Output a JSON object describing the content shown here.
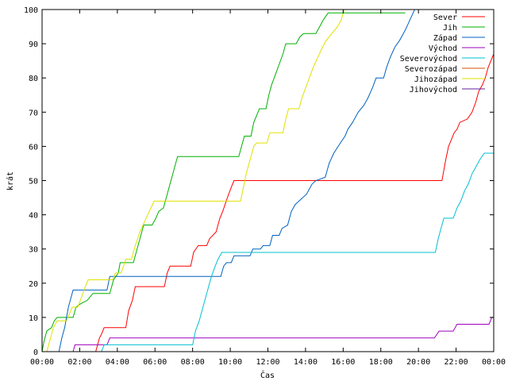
{
  "chart_data": {
    "type": "line",
    "title": "",
    "xlabel": "Čas",
    "ylabel": "krát",
    "xlim": [
      0,
      24
    ],
    "ylim": [
      0,
      100
    ],
    "x_ticks": [
      0,
      2,
      4,
      6,
      8,
      10,
      12,
      14,
      16,
      18,
      20,
      22,
      24
    ],
    "x_tick_labels": [
      "00:00",
      "02:00",
      "04:00",
      "06:00",
      "08:00",
      "10:00",
      "12:00",
      "14:00",
      "16:00",
      "18:00",
      "20:00",
      "22:00",
      "00:00"
    ],
    "y_ticks": [
      0,
      10,
      20,
      30,
      40,
      50,
      60,
      70,
      80,
      90,
      100
    ],
    "y_tick_labels": [
      "0",
      "10",
      "20",
      "30",
      "40",
      "50",
      "60",
      "70",
      "80",
      "90",
      "100"
    ],
    "grid": false,
    "legend_position": "top-right",
    "series": [
      {
        "name": "Sever",
        "color": "#ff0000",
        "points": [
          [
            0,
            0
          ],
          [
            2.85,
            0
          ],
          [
            3.05,
            4
          ],
          [
            3.15,
            5
          ],
          [
            3.3,
            7
          ],
          [
            4.45,
            7
          ],
          [
            4.6,
            12
          ],
          [
            4.8,
            15
          ],
          [
            4.95,
            19
          ],
          [
            6.5,
            19
          ],
          [
            6.65,
            23
          ],
          [
            6.8,
            25
          ],
          [
            7.9,
            25
          ],
          [
            8.05,
            29
          ],
          [
            8.3,
            31
          ],
          [
            8.75,
            31
          ],
          [
            8.9,
            33
          ],
          [
            9.25,
            35
          ],
          [
            9.45,
            39
          ],
          [
            9.6,
            41
          ],
          [
            9.85,
            45
          ],
          [
            10.05,
            48
          ],
          [
            10.2,
            50
          ],
          [
            21.25,
            50
          ],
          [
            21.45,
            56
          ],
          [
            21.6,
            60
          ],
          [
            21.75,
            62
          ],
          [
            21.9,
            64
          ],
          [
            22.05,
            65
          ],
          [
            22.2,
            67
          ],
          [
            22.6,
            68
          ],
          [
            22.85,
            70
          ],
          [
            23.05,
            73
          ],
          [
            23.2,
            76
          ],
          [
            23.4,
            78
          ],
          [
            23.55,
            80
          ],
          [
            23.7,
            83
          ],
          [
            23.85,
            85
          ],
          [
            24,
            87
          ]
        ]
      },
      {
        "name": "Jih",
        "color": "#00b000",
        "points": [
          [
            0,
            0
          ],
          [
            0.1,
            3
          ],
          [
            0.25,
            6
          ],
          [
            0.5,
            7
          ],
          [
            0.65,
            9
          ],
          [
            0.8,
            10
          ],
          [
            1.65,
            10
          ],
          [
            1.8,
            13
          ],
          [
            2.05,
            14
          ],
          [
            2.4,
            15
          ],
          [
            2.7,
            17
          ],
          [
            3.6,
            17
          ],
          [
            3.8,
            21
          ],
          [
            4.05,
            23
          ],
          [
            4.15,
            26
          ],
          [
            4.85,
            26
          ],
          [
            5.05,
            30
          ],
          [
            5.2,
            33
          ],
          [
            5.4,
            37
          ],
          [
            5.85,
            37
          ],
          [
            6.05,
            39
          ],
          [
            6.2,
            41
          ],
          [
            6.45,
            42
          ],
          [
            6.6,
            45
          ],
          [
            6.75,
            48
          ],
          [
            6.9,
            51
          ],
          [
            7.05,
            54
          ],
          [
            7.2,
            57
          ],
          [
            10.45,
            57
          ],
          [
            10.6,
            60
          ],
          [
            10.75,
            63
          ],
          [
            11.1,
            63
          ],
          [
            11.25,
            67
          ],
          [
            11.4,
            69
          ],
          [
            11.55,
            71
          ],
          [
            11.9,
            71
          ],
          [
            12.05,
            75
          ],
          [
            12.2,
            78
          ],
          [
            12.4,
            81
          ],
          [
            12.6,
            84
          ],
          [
            12.8,
            87
          ],
          [
            12.95,
            90
          ],
          [
            13.5,
            90
          ],
          [
            13.7,
            92
          ],
          [
            13.9,
            93
          ],
          [
            14.55,
            93
          ],
          [
            14.75,
            95
          ],
          [
            14.95,
            97
          ],
          [
            15.2,
            99
          ],
          [
            19.3,
            99
          ]
        ]
      },
      {
        "name": "Západ",
        "color": "#0060c0",
        "points": [
          [
            0,
            0
          ],
          [
            0.9,
            0
          ],
          [
            1.05,
            4
          ],
          [
            1.2,
            7
          ],
          [
            1.3,
            10
          ],
          [
            1.4,
            13
          ],
          [
            1.55,
            16
          ],
          [
            1.65,
            18
          ],
          [
            3.45,
            18
          ],
          [
            3.6,
            22
          ],
          [
            9.5,
            22
          ],
          [
            9.65,
            25
          ],
          [
            9.8,
            26
          ],
          [
            10.05,
            26
          ],
          [
            10.2,
            28
          ],
          [
            11.05,
            28
          ],
          [
            11.2,
            30
          ],
          [
            11.6,
            30
          ],
          [
            11.75,
            31
          ],
          [
            12.1,
            31
          ],
          [
            12.25,
            34
          ],
          [
            12.6,
            34
          ],
          [
            12.75,
            36
          ],
          [
            13.05,
            37
          ],
          [
            13.25,
            41
          ],
          [
            13.45,
            43
          ],
          [
            13.65,
            44
          ],
          [
            14.05,
            46
          ],
          [
            14.35,
            49
          ],
          [
            14.55,
            50
          ],
          [
            15.05,
            51
          ],
          [
            15.25,
            55
          ],
          [
            15.5,
            58
          ],
          [
            15.85,
            61
          ],
          [
            16.1,
            63
          ],
          [
            16.25,
            65
          ],
          [
            16.5,
            67
          ],
          [
            16.8,
            70
          ],
          [
            17.1,
            72
          ],
          [
            17.3,
            74
          ],
          [
            17.55,
            77
          ],
          [
            17.75,
            80
          ],
          [
            18.15,
            80
          ],
          [
            18.3,
            83
          ],
          [
            18.5,
            86
          ],
          [
            18.75,
            89
          ],
          [
            19.0,
            91
          ],
          [
            19.3,
            94
          ],
          [
            19.55,
            97
          ],
          [
            19.8,
            100
          ]
        ]
      },
      {
        "name": "Východ",
        "color": "#a000c0",
        "points": [
          [
            0,
            0
          ],
          [
            1.65,
            0
          ],
          [
            1.75,
            2
          ],
          [
            3.45,
            2
          ],
          [
            3.6,
            4
          ],
          [
            20.85,
            4
          ],
          [
            21.1,
            6
          ],
          [
            21.85,
            6
          ],
          [
            22.05,
            8
          ],
          [
            23.75,
            8
          ],
          [
            23.9,
            10
          ],
          [
            24,
            10
          ]
        ]
      },
      {
        "name": "Severovýchod",
        "color": "#00c0d0",
        "points": [
          [
            0,
            0
          ],
          [
            3.15,
            0
          ],
          [
            3.3,
            2
          ],
          [
            8.0,
            2
          ],
          [
            8.15,
            6
          ],
          [
            8.35,
            9
          ],
          [
            8.55,
            13
          ],
          [
            8.7,
            16
          ],
          [
            8.85,
            19
          ],
          [
            9.0,
            22
          ],
          [
            9.2,
            25
          ],
          [
            9.35,
            27
          ],
          [
            9.55,
            29
          ],
          [
            20.9,
            29
          ],
          [
            21.05,
            33
          ],
          [
            21.2,
            36
          ],
          [
            21.35,
            39
          ],
          [
            21.85,
            39
          ],
          [
            22.05,
            42
          ],
          [
            22.25,
            44
          ],
          [
            22.45,
            47
          ],
          [
            22.65,
            49
          ],
          [
            22.85,
            52
          ],
          [
            23.05,
            54
          ],
          [
            23.25,
            56
          ],
          [
            23.5,
            58
          ],
          [
            24,
            58
          ]
        ]
      },
      {
        "name": "Severozápad",
        "color": "#d05000",
        "points": []
      },
      {
        "name": "Jihozápad",
        "color": "#e0e000",
        "points": [
          [
            0,
            0
          ],
          [
            0.25,
            0
          ],
          [
            0.45,
            4
          ],
          [
            0.6,
            7
          ],
          [
            0.8,
            9
          ],
          [
            1.3,
            9
          ],
          [
            1.45,
            11
          ],
          [
            1.6,
            13
          ],
          [
            1.9,
            13
          ],
          [
            2.1,
            16
          ],
          [
            2.3,
            19
          ],
          [
            2.45,
            21
          ],
          [
            3.75,
            21
          ],
          [
            3.9,
            23
          ],
          [
            4.2,
            23
          ],
          [
            4.45,
            27
          ],
          [
            4.75,
            27
          ],
          [
            4.95,
            31
          ],
          [
            5.2,
            35
          ],
          [
            5.45,
            38
          ],
          [
            5.7,
            41
          ],
          [
            5.95,
            44
          ],
          [
            10.55,
            44
          ],
          [
            10.7,
            48
          ],
          [
            10.85,
            52
          ],
          [
            11.05,
            56
          ],
          [
            11.25,
            60
          ],
          [
            11.4,
            61
          ],
          [
            11.95,
            61
          ],
          [
            12.1,
            64
          ],
          [
            12.8,
            64
          ],
          [
            12.95,
            68
          ],
          [
            13.1,
            71
          ],
          [
            13.65,
            71
          ],
          [
            13.8,
            74
          ],
          [
            14.0,
            77
          ],
          [
            14.2,
            80
          ],
          [
            14.4,
            83
          ],
          [
            14.65,
            86
          ],
          [
            14.9,
            89
          ],
          [
            15.1,
            91
          ],
          [
            15.4,
            93
          ],
          [
            15.7,
            95
          ],
          [
            15.9,
            97
          ],
          [
            16.05,
            100
          ]
        ]
      },
      {
        "name": "Jihovýchod",
        "color": "#6020a0",
        "points": []
      }
    ]
  }
}
